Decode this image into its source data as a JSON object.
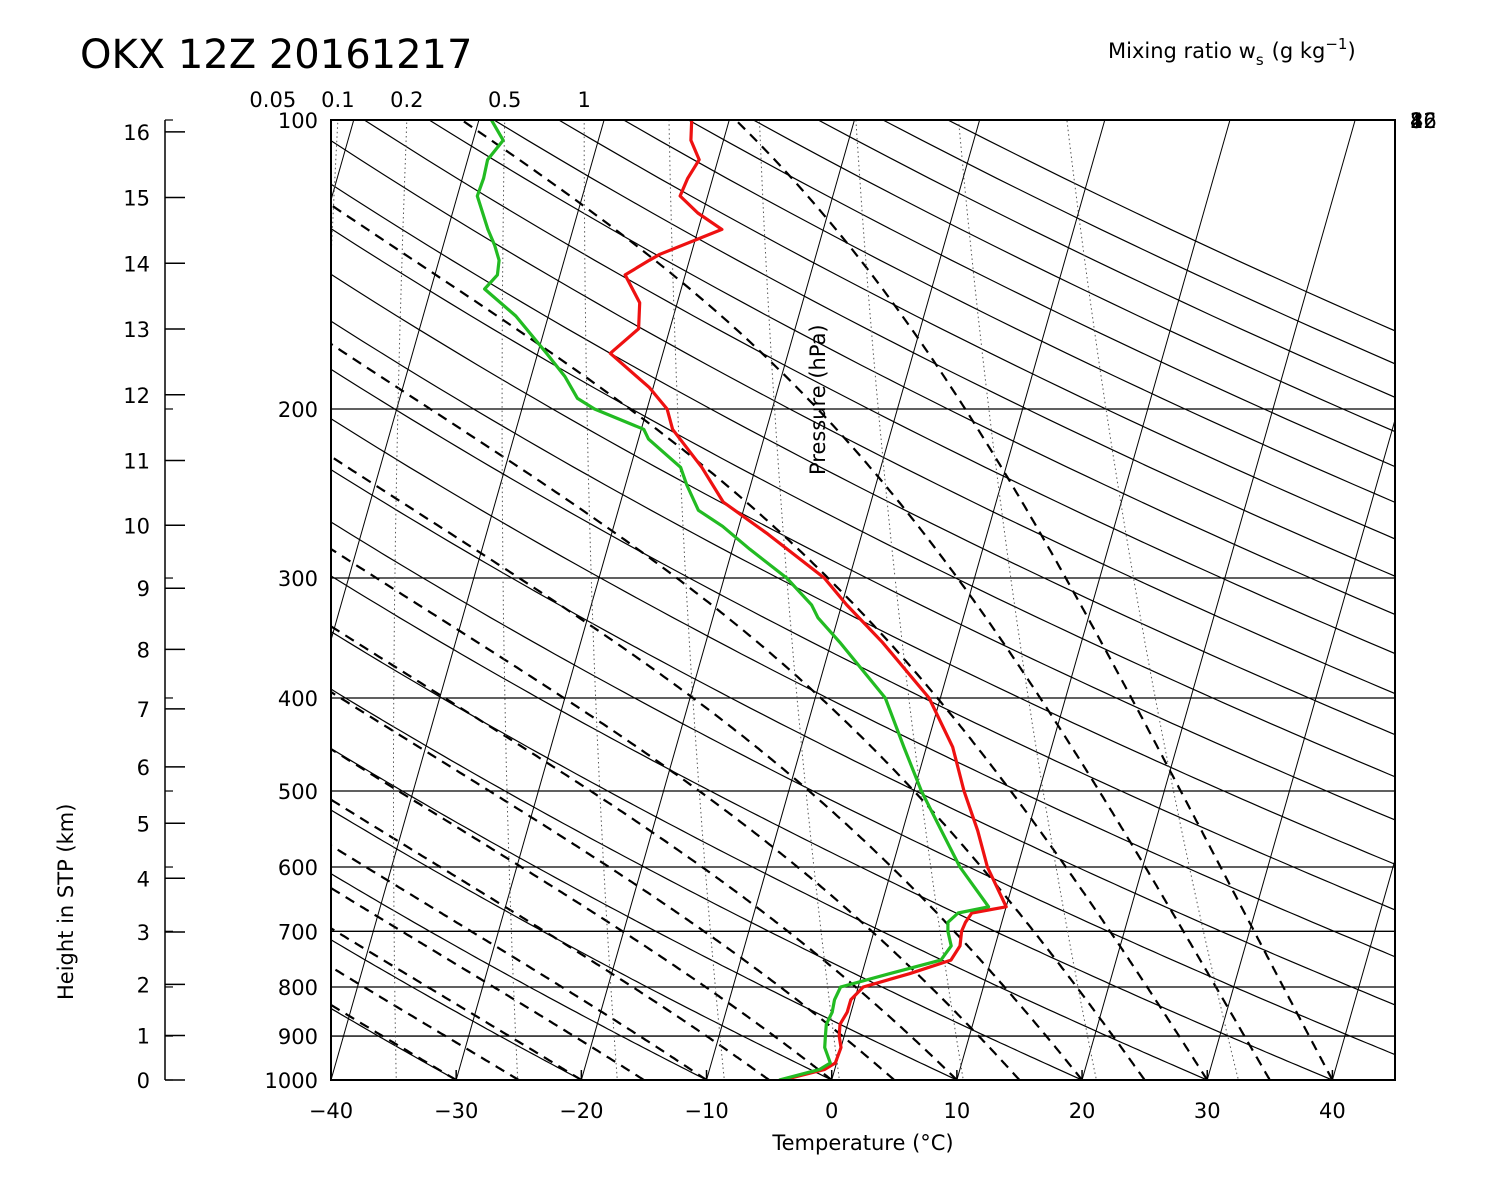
{
  "title": "OKX 12Z 20161217",
  "chart_data": {
    "type": "skew-t",
    "title": "OKX 12Z 20161217",
    "xlabel": "Temperature (°C)",
    "ylabel_left": "Height in STP (km)",
    "ylabel_inner": "Pressure (hPa)",
    "mixing_ratio_title": "Mixing ratio w",
    "mixing_ratio_subscript": "s",
    "mixing_ratio_units": "(g kg",
    "mixing_ratio_units_exp": "−1",
    "mixing_ratio_units_close": ")",
    "xlim": [
      -40,
      45
    ],
    "pressure_range": [
      1000,
      100
    ],
    "temperature_ticks": [
      "−40",
      "−30",
      "−20",
      "−10",
      "0",
      "10",
      "20",
      "30",
      "40"
    ],
    "temperature_tick_values": [
      -40,
      -30,
      -20,
      -10,
      0,
      10,
      20,
      30,
      40
    ],
    "pressure_ticks": [
      "1000",
      "900",
      "800",
      "700",
      "600",
      "500",
      "400",
      "300",
      "200",
      "100"
    ],
    "pressure_tick_values": [
      1000,
      900,
      800,
      700,
      600,
      500,
      400,
      300,
      200,
      100
    ],
    "height_ticks": [
      "0",
      "1",
      "2",
      "3",
      "4",
      "5",
      "6",
      "7",
      "8",
      "9",
      "10",
      "11",
      "12",
      "13",
      "14",
      "15",
      "16"
    ],
    "height_tick_values": [
      0,
      1,
      2,
      3,
      4,
      5,
      6,
      7,
      8,
      9,
      10,
      11,
      12,
      13,
      14,
      15,
      16
    ],
    "mixing_ratio_top_labels": [
      "0.05",
      "0.1",
      "0.2",
      "0.5",
      "1"
    ],
    "mixing_ratio_top_values": [
      0.05,
      0.1,
      0.2,
      0.5,
      1
    ],
    "mixing_ratio_right_labels": [
      "2",
      "4",
      "8",
      "16",
      "32"
    ],
    "mixing_ratio_right_values": [
      2,
      4,
      8,
      16,
      32
    ],
    "grid": true,
    "series": [
      {
        "color": "#ee1111",
        "points": [
          [
            1000,
            -3.9
          ],
          [
            975,
            -0.8
          ],
          [
            960,
            -0.1
          ],
          [
            925,
            0.0
          ],
          [
            900,
            -0.4
          ],
          [
            875,
            -0.6
          ],
          [
            850,
            -0.3
          ],
          [
            825,
            -0.3
          ],
          [
            800,
            0.4
          ],
          [
            775,
            3.8
          ],
          [
            750,
            6.8
          ],
          [
            725,
            7.2
          ],
          [
            700,
            7.0
          ],
          [
            685,
            7.1
          ],
          [
            670,
            7.4
          ],
          [
            660,
            10.0
          ],
          [
            600,
            7.6
          ],
          [
            550,
            6.0
          ],
          [
            500,
            4.0
          ],
          [
            450,
            2.1
          ],
          [
            400,
            -0.9
          ],
          [
            350,
            -5.9
          ],
          [
            320,
            -9.6
          ],
          [
            300,
            -12.0
          ],
          [
            270,
            -17.5
          ],
          [
            250,
            -21.8
          ],
          [
            230,
            -24.3
          ],
          [
            210,
            -27.5
          ],
          [
            200,
            -28.4
          ],
          [
            190,
            -30.3
          ],
          [
            175,
            -34.2
          ],
          [
            165,
            -32.5
          ],
          [
            155,
            -33.0
          ],
          [
            145,
            -34.8
          ],
          [
            140,
            -33.2
          ],
          [
            138,
            -32.5
          ],
          [
            130,
            -28.1
          ],
          [
            125,
            -30.4
          ],
          [
            120,
            -32.2
          ],
          [
            115,
            -32.0
          ],
          [
            110,
            -31.5
          ],
          [
            105,
            -32.6
          ],
          [
            100,
            -33.0
          ]
        ]
      },
      {
        "color": "#22bb22",
        "points": [
          [
            1000,
            -4.2
          ],
          [
            975,
            -1.2
          ],
          [
            960,
            -0.5
          ],
          [
            925,
            -1.3
          ],
          [
            900,
            -1.5
          ],
          [
            875,
            -1.7
          ],
          [
            850,
            -1.5
          ],
          [
            825,
            -1.6
          ],
          [
            800,
            -1.4
          ],
          [
            775,
            2.2
          ],
          [
            750,
            6.0
          ],
          [
            725,
            6.5
          ],
          [
            700,
            5.9
          ],
          [
            685,
            5.7
          ],
          [
            670,
            6.3
          ],
          [
            660,
            8.6
          ],
          [
            600,
            5.4
          ],
          [
            550,
            3.1
          ],
          [
            500,
            0.6
          ],
          [
            450,
            -1.8
          ],
          [
            400,
            -4.4
          ],
          [
            350,
            -9.3
          ],
          [
            330,
            -11.6
          ],
          [
            320,
            -12.4
          ],
          [
            300,
            -15.0
          ],
          [
            280,
            -18.6
          ],
          [
            265,
            -21.3
          ],
          [
            255,
            -23.6
          ],
          [
            240,
            -25.1
          ],
          [
            230,
            -26.0
          ],
          [
            215,
            -29.2
          ],
          [
            210,
            -29.8
          ],
          [
            200,
            -34.2
          ],
          [
            195,
            -35.8
          ],
          [
            185,
            -37.3
          ],
          [
            175,
            -39.3
          ],
          [
            160,
            -42.6
          ],
          [
            150,
            -45.7
          ],
          [
            145,
            -45.0
          ],
          [
            140,
            -45.2
          ],
          [
            135,
            -45.9
          ],
          [
            130,
            -46.8
          ],
          [
            120,
            -48.4
          ],
          [
            115,
            -48.3
          ],
          [
            110,
            -48.4
          ],
          [
            105,
            -47.6
          ],
          [
            100,
            -49.0
          ]
        ]
      }
    ]
  }
}
